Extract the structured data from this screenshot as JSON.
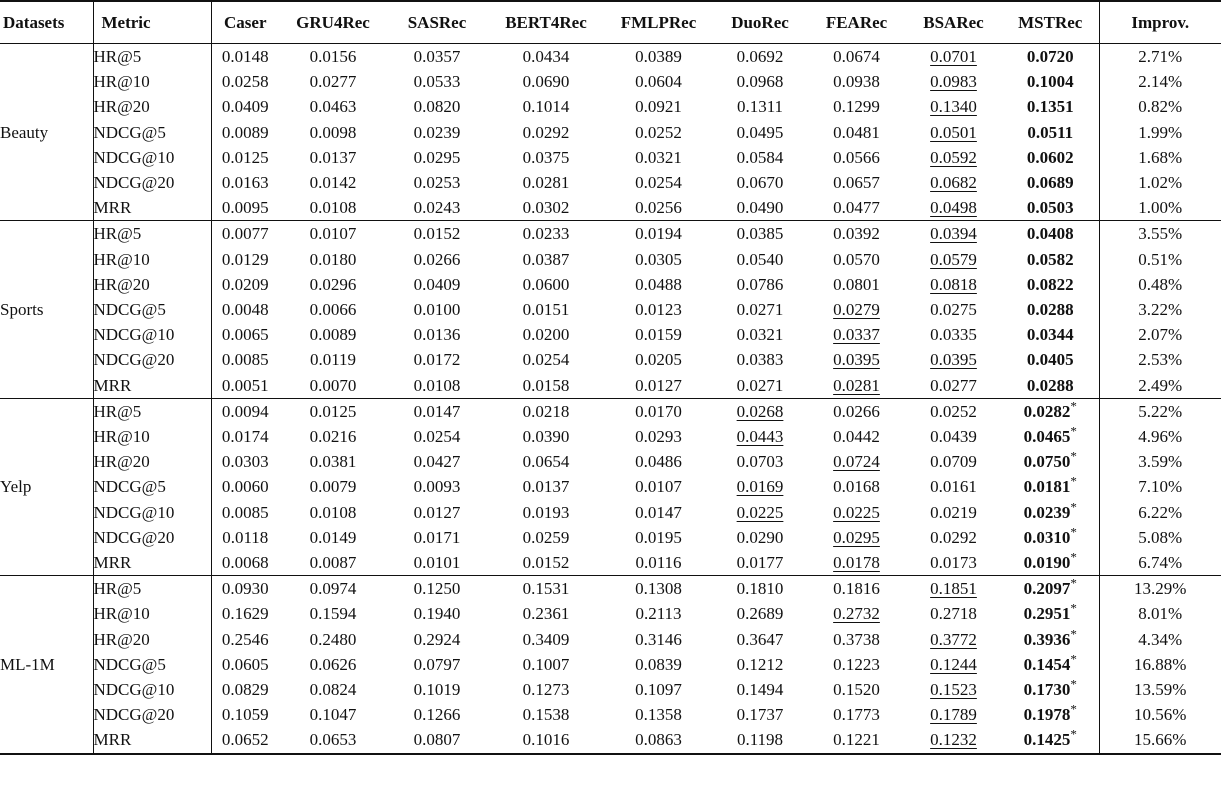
{
  "header": {
    "datasets": "Datasets",
    "metric": "Metric",
    "models": [
      "Caser",
      "GRU4Rec",
      "SASRec",
      "BERT4Rec",
      "FMLPRec",
      "DuoRec",
      "FEARec",
      "BSARec",
      "MSTRec"
    ],
    "improvement": "Improv."
  },
  "groups": [
    {
      "dataset": "Beauty",
      "rows": [
        {
          "metric": "HR@5",
          "cells": [
            {
              "v": "0.0148"
            },
            {
              "v": "0.0156"
            },
            {
              "v": "0.0357"
            },
            {
              "v": "0.0434"
            },
            {
              "v": "0.0389"
            },
            {
              "v": "0.0692"
            },
            {
              "v": "0.0674"
            },
            {
              "v": "0.0701",
              "u": true
            },
            {
              "v": "0.0720",
              "b": true
            }
          ],
          "improv": "2.71%"
        },
        {
          "metric": "HR@10",
          "cells": [
            {
              "v": "0.0258"
            },
            {
              "v": "0.0277"
            },
            {
              "v": "0.0533"
            },
            {
              "v": "0.0690"
            },
            {
              "v": "0.0604"
            },
            {
              "v": "0.0968"
            },
            {
              "v": "0.0938"
            },
            {
              "v": "0.0983",
              "u": true
            },
            {
              "v": "0.1004",
              "b": true
            }
          ],
          "improv": "2.14%"
        },
        {
          "metric": "HR@20",
          "cells": [
            {
              "v": "0.0409"
            },
            {
              "v": "0.0463"
            },
            {
              "v": "0.0820"
            },
            {
              "v": "0.1014"
            },
            {
              "v": "0.0921"
            },
            {
              "v": "0.1311"
            },
            {
              "v": "0.1299"
            },
            {
              "v": "0.1340",
              "u": true
            },
            {
              "v": "0.1351",
              "b": true
            }
          ],
          "improv": "0.82%"
        },
        {
          "metric": "NDCG@5",
          "cells": [
            {
              "v": "0.0089"
            },
            {
              "v": "0.0098"
            },
            {
              "v": "0.0239"
            },
            {
              "v": "0.0292"
            },
            {
              "v": "0.0252"
            },
            {
              "v": "0.0495"
            },
            {
              "v": "0.0481"
            },
            {
              "v": "0.0501",
              "u": true
            },
            {
              "v": "0.0511",
              "b": true
            }
          ],
          "improv": "1.99%"
        },
        {
          "metric": "NDCG@10",
          "cells": [
            {
              "v": "0.0125"
            },
            {
              "v": "0.0137"
            },
            {
              "v": "0.0295"
            },
            {
              "v": "0.0375"
            },
            {
              "v": "0.0321"
            },
            {
              "v": "0.0584"
            },
            {
              "v": "0.0566"
            },
            {
              "v": "0.0592",
              "u": true
            },
            {
              "v": "0.0602",
              "b": true
            }
          ],
          "improv": "1.68%"
        },
        {
          "metric": "NDCG@20",
          "cells": [
            {
              "v": "0.0163"
            },
            {
              "v": "0.0142"
            },
            {
              "v": "0.0253"
            },
            {
              "v": "0.0281"
            },
            {
              "v": "0.0254"
            },
            {
              "v": "0.0670"
            },
            {
              "v": "0.0657"
            },
            {
              "v": "0.0682",
              "u": true
            },
            {
              "v": "0.0689",
              "b": true
            }
          ],
          "improv": "1.02%"
        },
        {
          "metric": "MRR",
          "cells": [
            {
              "v": "0.0095"
            },
            {
              "v": "0.0108"
            },
            {
              "v": "0.0243"
            },
            {
              "v": "0.0302"
            },
            {
              "v": "0.0256"
            },
            {
              "v": "0.0490"
            },
            {
              "v": "0.0477"
            },
            {
              "v": "0.0498",
              "u": true
            },
            {
              "v": "0.0503",
              "b": true
            }
          ],
          "improv": "1.00%"
        }
      ]
    },
    {
      "dataset": "Sports",
      "rows": [
        {
          "metric": "HR@5",
          "cells": [
            {
              "v": "0.0077"
            },
            {
              "v": "0.0107"
            },
            {
              "v": "0.0152"
            },
            {
              "v": "0.0233"
            },
            {
              "v": "0.0194"
            },
            {
              "v": "0.0385"
            },
            {
              "v": "0.0392"
            },
            {
              "v": "0.0394",
              "u": true
            },
            {
              "v": "0.0408",
              "b": true
            }
          ],
          "improv": "3.55%"
        },
        {
          "metric": "HR@10",
          "cells": [
            {
              "v": "0.0129"
            },
            {
              "v": "0.0180"
            },
            {
              "v": "0.0266"
            },
            {
              "v": "0.0387"
            },
            {
              "v": "0.0305"
            },
            {
              "v": "0.0540"
            },
            {
              "v": "0.0570"
            },
            {
              "v": "0.0579",
              "u": true
            },
            {
              "v": "0.0582",
              "b": true
            }
          ],
          "improv": "0.51%"
        },
        {
          "metric": "HR@20",
          "cells": [
            {
              "v": "0.0209"
            },
            {
              "v": "0.0296"
            },
            {
              "v": "0.0409"
            },
            {
              "v": "0.0600"
            },
            {
              "v": "0.0488"
            },
            {
              "v": "0.0786"
            },
            {
              "v": "0.0801"
            },
            {
              "v": "0.0818",
              "u": true
            },
            {
              "v": "0.0822",
              "b": true
            }
          ],
          "improv": "0.48%"
        },
        {
          "metric": "NDCG@5",
          "cells": [
            {
              "v": "0.0048"
            },
            {
              "v": "0.0066"
            },
            {
              "v": "0.0100"
            },
            {
              "v": "0.0151"
            },
            {
              "v": "0.0123"
            },
            {
              "v": "0.0271"
            },
            {
              "v": "0.0279",
              "u": true
            },
            {
              "v": "0.0275"
            },
            {
              "v": "0.0288",
              "b": true
            }
          ],
          "improv": "3.22%"
        },
        {
          "metric": "NDCG@10",
          "cells": [
            {
              "v": "0.0065"
            },
            {
              "v": "0.0089"
            },
            {
              "v": "0.0136"
            },
            {
              "v": "0.0200"
            },
            {
              "v": "0.0159"
            },
            {
              "v": "0.0321"
            },
            {
              "v": "0.0337",
              "u": true
            },
            {
              "v": "0.0335"
            },
            {
              "v": "0.0344",
              "b": true
            }
          ],
          "improv": "2.07%"
        },
        {
          "metric": "NDCG@20",
          "cells": [
            {
              "v": "0.0085"
            },
            {
              "v": "0.0119"
            },
            {
              "v": "0.0172"
            },
            {
              "v": "0.0254"
            },
            {
              "v": "0.0205"
            },
            {
              "v": "0.0383"
            },
            {
              "v": "0.0395",
              "u": true
            },
            {
              "v": "0.0395",
              "u": true
            },
            {
              "v": "0.0405",
              "b": true
            }
          ],
          "improv": "2.53%"
        },
        {
          "metric": "MRR",
          "cells": [
            {
              "v": "0.0051"
            },
            {
              "v": "0.0070"
            },
            {
              "v": "0.0108"
            },
            {
              "v": "0.0158"
            },
            {
              "v": "0.0127"
            },
            {
              "v": "0.0271"
            },
            {
              "v": "0.0281",
              "u": true
            },
            {
              "v": "0.0277"
            },
            {
              "v": "0.0288",
              "b": true
            }
          ],
          "improv": "2.49%"
        }
      ]
    },
    {
      "dataset": "Yelp",
      "rows": [
        {
          "metric": "HR@5",
          "cells": [
            {
              "v": "0.0094"
            },
            {
              "v": "0.0125"
            },
            {
              "v": "0.0147"
            },
            {
              "v": "0.0218"
            },
            {
              "v": "0.0170"
            },
            {
              "v": "0.0268",
              "u": true
            },
            {
              "v": "0.0266"
            },
            {
              "v": "0.0252"
            },
            {
              "v": "0.0282",
              "b": true,
              "s": "*"
            }
          ],
          "improv": "5.22%"
        },
        {
          "metric": "HR@10",
          "cells": [
            {
              "v": "0.0174"
            },
            {
              "v": "0.0216"
            },
            {
              "v": "0.0254"
            },
            {
              "v": "0.0390"
            },
            {
              "v": "0.0293"
            },
            {
              "v": "0.0443",
              "u": true
            },
            {
              "v": "0.0442"
            },
            {
              "v": "0.0439"
            },
            {
              "v": "0.0465",
              "b": true,
              "s": "*"
            }
          ],
          "improv": "4.96%"
        },
        {
          "metric": "HR@20",
          "cells": [
            {
              "v": "0.0303"
            },
            {
              "v": "0.0381"
            },
            {
              "v": "0.0427"
            },
            {
              "v": "0.0654"
            },
            {
              "v": "0.0486"
            },
            {
              "v": "0.0703"
            },
            {
              "v": "0.0724",
              "u": true
            },
            {
              "v": "0.0709"
            },
            {
              "v": "0.0750",
              "b": true,
              "s": "*"
            }
          ],
          "improv": "3.59%"
        },
        {
          "metric": "NDCG@5",
          "cells": [
            {
              "v": "0.0060"
            },
            {
              "v": "0.0079"
            },
            {
              "v": "0.0093"
            },
            {
              "v": "0.0137"
            },
            {
              "v": "0.0107"
            },
            {
              "v": "0.0169",
              "u": true
            },
            {
              "v": "0.0168"
            },
            {
              "v": "0.0161"
            },
            {
              "v": "0.0181",
              "b": true,
              "s": "*"
            }
          ],
          "improv": "7.10%"
        },
        {
          "metric": "NDCG@10",
          "cells": [
            {
              "v": "0.0085"
            },
            {
              "v": "0.0108"
            },
            {
              "v": "0.0127"
            },
            {
              "v": "0.0193"
            },
            {
              "v": "0.0147"
            },
            {
              "v": "0.0225",
              "u": true
            },
            {
              "v": "0.0225",
              "u": true
            },
            {
              "v": "0.0219"
            },
            {
              "v": "0.0239",
              "b": true,
              "s": "*"
            }
          ],
          "improv": "6.22%"
        },
        {
          "metric": "NDCG@20",
          "cells": [
            {
              "v": "0.0118"
            },
            {
              "v": "0.0149"
            },
            {
              "v": "0.0171"
            },
            {
              "v": "0.0259"
            },
            {
              "v": "0.0195"
            },
            {
              "v": "0.0290"
            },
            {
              "v": "0.0295",
              "u": true
            },
            {
              "v": "0.0292"
            },
            {
              "v": "0.0310",
              "b": true,
              "s": "*"
            }
          ],
          "improv": "5.08%"
        },
        {
          "metric": "MRR",
          "cells": [
            {
              "v": "0.0068"
            },
            {
              "v": "0.0087"
            },
            {
              "v": "0.0101"
            },
            {
              "v": "0.0152"
            },
            {
              "v": "0.0116"
            },
            {
              "v": "0.0177"
            },
            {
              "v": "0.0178",
              "u": true
            },
            {
              "v": "0.0173"
            },
            {
              "v": "0.0190",
              "b": true,
              "s": "*"
            }
          ],
          "improv": "6.74%"
        }
      ]
    },
    {
      "dataset": "ML-1M",
      "rows": [
        {
          "metric": "HR@5",
          "cells": [
            {
              "v": "0.0930"
            },
            {
              "v": "0.0974"
            },
            {
              "v": "0.1250"
            },
            {
              "v": "0.1531"
            },
            {
              "v": "0.1308"
            },
            {
              "v": "0.1810"
            },
            {
              "v": "0.1816"
            },
            {
              "v": "0.1851",
              "u": true
            },
            {
              "v": "0.2097",
              "b": true,
              "s": "*"
            }
          ],
          "improv": "13.29%"
        },
        {
          "metric": "HR@10",
          "cells": [
            {
              "v": "0.1629"
            },
            {
              "v": "0.1594"
            },
            {
              "v": "0.1940"
            },
            {
              "v": "0.2361"
            },
            {
              "v": "0.2113"
            },
            {
              "v": "0.2689"
            },
            {
              "v": "0.2732",
              "u": true
            },
            {
              "v": "0.2718"
            },
            {
              "v": "0.2951",
              "b": true,
              "s": "*"
            }
          ],
          "improv": "8.01%"
        },
        {
          "metric": "HR@20",
          "cells": [
            {
              "v": "0.2546"
            },
            {
              "v": "0.2480"
            },
            {
              "v": "0.2924"
            },
            {
              "v": "0.3409"
            },
            {
              "v": "0.3146"
            },
            {
              "v": "0.3647"
            },
            {
              "v": "0.3738"
            },
            {
              "v": "0.3772",
              "u": true
            },
            {
              "v": "0.3936",
              "b": true,
              "s": "*"
            }
          ],
          "improv": "4.34%"
        },
        {
          "metric": "NDCG@5",
          "cells": [
            {
              "v": "0.0605"
            },
            {
              "v": "0.0626"
            },
            {
              "v": "0.0797"
            },
            {
              "v": "0.1007"
            },
            {
              "v": "0.0839"
            },
            {
              "v": "0.1212"
            },
            {
              "v": "0.1223"
            },
            {
              "v": "0.1244",
              "u": true
            },
            {
              "v": "0.1454",
              "b": true,
              "s": "*"
            }
          ],
          "improv": "16.88%"
        },
        {
          "metric": "NDCG@10",
          "cells": [
            {
              "v": "0.0829"
            },
            {
              "v": "0.0824"
            },
            {
              "v": "0.1019"
            },
            {
              "v": "0.1273"
            },
            {
              "v": "0.1097"
            },
            {
              "v": "0.1494"
            },
            {
              "v": "0.1520"
            },
            {
              "v": "0.1523",
              "u": true
            },
            {
              "v": "0.1730",
              "b": true,
              "s": "*"
            }
          ],
          "improv": "13.59%"
        },
        {
          "metric": "NDCG@20",
          "cells": [
            {
              "v": "0.1059"
            },
            {
              "v": "0.1047"
            },
            {
              "v": "0.1266"
            },
            {
              "v": "0.1538"
            },
            {
              "v": "0.1358"
            },
            {
              "v": "0.1737"
            },
            {
              "v": "0.1773"
            },
            {
              "v": "0.1789",
              "u": true
            },
            {
              "v": "0.1978",
              "b": true,
              "s": "*"
            }
          ],
          "improv": "10.56%"
        },
        {
          "metric": "MRR",
          "cells": [
            {
              "v": "0.0652"
            },
            {
              "v": "0.0653"
            },
            {
              "v": "0.0807"
            },
            {
              "v": "0.1016"
            },
            {
              "v": "0.0863"
            },
            {
              "v": "0.1198"
            },
            {
              "v": "0.1221"
            },
            {
              "v": "0.1232",
              "u": true
            },
            {
              "v": "0.1425",
              "b": true,
              "s": "*"
            }
          ],
          "improv": "15.66%"
        }
      ]
    }
  ]
}
